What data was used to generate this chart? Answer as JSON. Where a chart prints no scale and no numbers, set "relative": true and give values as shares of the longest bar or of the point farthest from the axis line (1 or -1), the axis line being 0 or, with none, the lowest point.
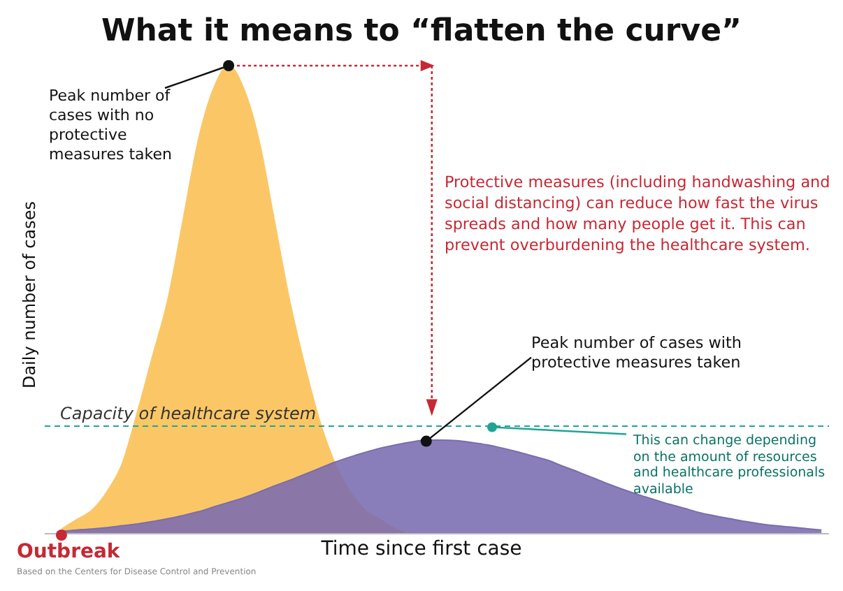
{
  "chart_data": {
    "type": "area",
    "title": "What it means to “flatten the curve”",
    "xlabel": "Time since first case",
    "ylabel": "Daily number of cases",
    "relative": true,
    "categories": [
      null,
      null,
      null,
      null,
      null,
      null,
      null,
      null,
      null,
      null,
      null,
      null,
      null,
      null,
      null,
      null,
      null,
      null,
      null,
      null,
      null,
      null,
      null,
      null,
      null,
      null,
      null,
      null,
      null,
      null,
      null,
      null,
      null,
      null,
      null,
      null,
      null,
      null,
      null,
      null,
      null,
      null,
      null,
      null,
      null,
      null,
      null,
      null,
      null,
      null,
      null
    ],
    "series": [
      {
        "color": "#fbc766",
        "values": [
          0.01,
          0.03,
          0.05,
          0.09,
          0.15,
          0.26,
          0.38,
          0.5,
          0.67,
          0.84,
          0.95,
          1,
          0.95,
          0.84,
          0.67,
          0.5,
          0.36,
          0.24,
          0.15,
          0.09,
          0.05,
          0.03,
          0.01,
          0,
          0,
          0,
          0,
          0,
          0,
          0,
          0,
          0,
          0,
          0,
          0,
          0,
          0,
          0,
          0,
          0,
          0,
          0,
          0,
          0,
          0,
          0,
          0,
          0,
          0,
          0,
          0
        ]
      },
      {
        "color": "#7a6cb0",
        "values": [
          0.005,
          0.008,
          0.01,
          0.013,
          0.017,
          0.021,
          0.026,
          0.032,
          0.039,
          0.047,
          0.057,
          0.067,
          0.077,
          0.089,
          0.102,
          0.114,
          0.127,
          0.14,
          0.153,
          0.164,
          0.174,
          0.183,
          0.19,
          0.196,
          0.2,
          0.2,
          0.199,
          0.195,
          0.19,
          0.183,
          0.175,
          0.166,
          0.157,
          0.144,
          0.132,
          0.119,
          0.106,
          0.094,
          0.083,
          0.073,
          0.063,
          0.054,
          0.045,
          0.038,
          0.032,
          0.026,
          0.021,
          0.017,
          0.014,
          0.011,
          0.008
        ]
      }
    ],
    "ref_lines": [
      {
        "axis": "y",
        "value": 0.23,
        "label": "Capacity of healthcare system",
        "color": "#1fa595",
        "line_style": "dashed"
      }
    ],
    "annotations": [
      "Peak number of cases with no protective measures taken",
      "Protective measures (including handwashing and social distancing) can reduce how fast the virus spreads and how many people get it. This can prevent overburdening the healthcare system.",
      "Peak number of cases with protective measures taken",
      "This can change depending on the amount of resources and healthcare professionals available",
      "Outbreak",
      "Based on the Centers for Disease Control and Prevention"
    ]
  }
}
